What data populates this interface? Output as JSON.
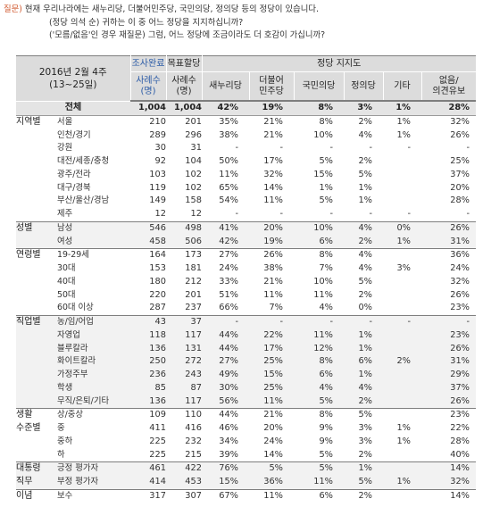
{
  "question": {
    "prefix": "질문)",
    "line1": "현재 우리나라에는 새누리당, 더불어민주당, 국민의당, 정의당 등의 정당이 있습니다.",
    "line2": "(정당 의석 순) 귀하는 이 중 어느 정당을 지지하십니까?",
    "line3": "('모름/없음'인 경우 재질문) 그럼, 어느 정당에 조금이라도 더 호감이 가십니까?"
  },
  "header": {
    "date_line1": "2016년 2월 4주",
    "date_line2": "(13~25일)",
    "col_done_1": "조사완료",
    "col_done_2": "사례수",
    "col_done_3": "(명)",
    "col_target_1": "목표할당",
    "col_target_2": "사례수",
    "col_target_3": "(명)",
    "group_title": "정당 지지도",
    "parties": [
      "새누리당",
      "더불어\n민주당",
      "국민의당",
      "정의당",
      "기타",
      "없음/\n의견유보"
    ]
  },
  "total": {
    "label": "전체",
    "done": "1,004",
    "target": "1,004",
    "vals": [
      "42%",
      "19%",
      "8%",
      "3%",
      "1%",
      "28%"
    ]
  },
  "rows": [
    {
      "group": "지역별",
      "label": "서울",
      "done": "210",
      "target": "201",
      "vals": [
        "35%",
        "21%",
        "8%",
        "2%",
        "1%",
        "32%"
      ],
      "start": true
    },
    {
      "group": "",
      "label": "인천/경기",
      "done": "289",
      "target": "296",
      "vals": [
        "38%",
        "21%",
        "10%",
        "4%",
        "1%",
        "26%"
      ]
    },
    {
      "group": "",
      "label": "강원",
      "done": "30",
      "target": "31",
      "vals": [
        "-",
        "-",
        "-",
        "-",
        "-",
        "-"
      ]
    },
    {
      "group": "",
      "label": "대전/세종/충청",
      "done": "92",
      "target": "104",
      "vals": [
        "50%",
        "17%",
        "5%",
        "2%",
        "",
        "25%"
      ]
    },
    {
      "group": "",
      "label": "광주/전라",
      "done": "103",
      "target": "102",
      "vals": [
        "11%",
        "32%",
        "15%",
        "5%",
        "",
        "37%"
      ]
    },
    {
      "group": "",
      "label": "대구/경북",
      "done": "119",
      "target": "102",
      "vals": [
        "65%",
        "14%",
        "1%",
        "1%",
        "",
        "20%"
      ]
    },
    {
      "group": "",
      "label": "부산/울산/경남",
      "done": "149",
      "target": "158",
      "vals": [
        "54%",
        "11%",
        "5%",
        "1%",
        "",
        "28%"
      ]
    },
    {
      "group": "",
      "label": "제주",
      "done": "12",
      "target": "12",
      "vals": [
        "-",
        "-",
        "-",
        "-",
        "-",
        "-"
      ]
    },
    {
      "group": "성별",
      "label": "남성",
      "done": "546",
      "target": "498",
      "vals": [
        "41%",
        "20%",
        "10%",
        "4%",
        "0%",
        "26%"
      ],
      "start": true,
      "shaded": true
    },
    {
      "group": "",
      "label": "여성",
      "done": "458",
      "target": "506",
      "vals": [
        "42%",
        "19%",
        "6%",
        "2%",
        "1%",
        "31%"
      ],
      "shaded": true
    },
    {
      "group": "연령별",
      "label": "19-29세",
      "done": "164",
      "target": "173",
      "vals": [
        "27%",
        "26%",
        "8%",
        "4%",
        "",
        "36%"
      ],
      "start": true
    },
    {
      "group": "",
      "label": "30대",
      "done": "153",
      "target": "181",
      "vals": [
        "24%",
        "38%",
        "7%",
        "4%",
        "3%",
        "24%"
      ]
    },
    {
      "group": "",
      "label": "40대",
      "done": "180",
      "target": "212",
      "vals": [
        "33%",
        "21%",
        "10%",
        "5%",
        "",
        "32%"
      ]
    },
    {
      "group": "",
      "label": "50대",
      "done": "220",
      "target": "201",
      "vals": [
        "51%",
        "11%",
        "11%",
        "2%",
        "",
        "26%"
      ]
    },
    {
      "group": "",
      "label": "60대 이상",
      "done": "287",
      "target": "237",
      "vals": [
        "66%",
        "7%",
        "4%",
        "0%",
        "",
        "23%"
      ]
    },
    {
      "group": "직업별",
      "label": "농/임/어업",
      "done": "43",
      "target": "37",
      "vals": [
        "-",
        "-",
        "-",
        "-",
        "-",
        "-"
      ],
      "start": true,
      "shaded": true
    },
    {
      "group": "",
      "label": "자영업",
      "done": "118",
      "target": "117",
      "vals": [
        "44%",
        "22%",
        "11%",
        "1%",
        "",
        "23%"
      ],
      "shaded": true
    },
    {
      "group": "",
      "label": "블루칼라",
      "done": "136",
      "target": "131",
      "vals": [
        "44%",
        "17%",
        "12%",
        "1%",
        "",
        "26%"
      ],
      "shaded": true
    },
    {
      "group": "",
      "label": "화이트칼라",
      "done": "250",
      "target": "272",
      "vals": [
        "27%",
        "25%",
        "8%",
        "6%",
        "2%",
        "31%"
      ],
      "shaded": true
    },
    {
      "group": "",
      "label": "가정주부",
      "done": "236",
      "target": "243",
      "vals": [
        "49%",
        "15%",
        "6%",
        "1%",
        "",
        "29%"
      ],
      "shaded": true
    },
    {
      "group": "",
      "label": "학생",
      "done": "85",
      "target": "87",
      "vals": [
        "30%",
        "25%",
        "4%",
        "4%",
        "",
        "37%"
      ],
      "shaded": true
    },
    {
      "group": "",
      "label": "무직/은퇴/기타",
      "done": "136",
      "target": "117",
      "vals": [
        "56%",
        "11%",
        "5%",
        "2%",
        "",
        "26%"
      ],
      "shaded": true
    },
    {
      "group": "생활",
      "label": "상/중상",
      "done": "109",
      "target": "110",
      "vals": [
        "44%",
        "21%",
        "8%",
        "5%",
        "",
        "23%"
      ],
      "start": true
    },
    {
      "group": "수준별",
      "label": "중",
      "done": "411",
      "target": "416",
      "vals": [
        "46%",
        "20%",
        "9%",
        "3%",
        "1%",
        "22%"
      ]
    },
    {
      "group": "",
      "label": "중하",
      "done": "225",
      "target": "232",
      "vals": [
        "34%",
        "24%",
        "9%",
        "3%",
        "1%",
        "28%"
      ]
    },
    {
      "group": "",
      "label": "하",
      "done": "225",
      "target": "215",
      "vals": [
        "39%",
        "14%",
        "5%",
        "2%",
        "",
        "40%"
      ]
    },
    {
      "group": "대통령",
      "label": "긍정 평가자",
      "done": "461",
      "target": "422",
      "vals": [
        "76%",
        "5%",
        "5%",
        "1%",
        "",
        "14%"
      ],
      "start": true,
      "shaded": true
    },
    {
      "group": "직무",
      "label": "부정 평가자",
      "done": "414",
      "target": "453",
      "vals": [
        "15%",
        "36%",
        "11%",
        "5%",
        "1%",
        "32%"
      ],
      "shaded": true
    },
    {
      "group": "이념",
      "label": "보수",
      "done": "317",
      "target": "307",
      "vals": [
        "67%",
        "11%",
        "6%",
        "2%",
        "",
        "14%"
      ],
      "start": true
    }
  ]
}
